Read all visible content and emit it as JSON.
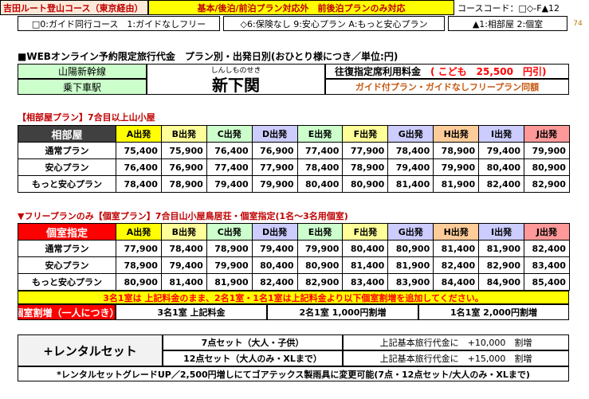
{
  "header": {
    "route": "吉田ルート登山コース（東京経由）",
    "plan_note": "基本/後泊/前泊プラン対応外　前後泊プランのみ対応",
    "course_code": "コースコード：□◇-F▲12",
    "legend_guide": "□0:ガイド同行コース　1:ガイドなしフリー",
    "legend_insurance": "◇6:保険なし 9:安心プラン A:もっと安心プラン",
    "legend_room": "▲1:相部屋 2:個室",
    "page_num": "74"
  },
  "title": "■WEBオンライン予約限定旅行代金　プラン別・出発日別(おひとり様につき／単位:円)",
  "station": {
    "line": "山陽新幹線",
    "board_label": "乗下車駅",
    "furigana": "しんしものせき",
    "name": "新下関",
    "fare_label": "往復指定席利用料金",
    "child_fare": "( こども　25,500　円引)",
    "guide_note": "ガイド付プラン・ガイドなしフリープラン同額"
  },
  "section1": {
    "title": "【相部屋プラン】7合目以上山小屋",
    "header": "相部屋",
    "departures": [
      "A出発",
      "B出発",
      "C出発",
      "D出発",
      "E出発",
      "F出発",
      "G出発",
      "H出発",
      "I出発",
      "J出発"
    ],
    "rows": [
      {
        "plan": "通常プラン",
        "prices": [
          "75,400",
          "75,900",
          "76,400",
          "76,900",
          "77,400",
          "77,900",
          "78,400",
          "78,900",
          "79,400",
          "79,900"
        ]
      },
      {
        "plan": "安心プラン",
        "prices": [
          "76,400",
          "76,900",
          "77,400",
          "77,900",
          "78,400",
          "78,900",
          "79,400",
          "79,900",
          "80,400",
          "80,900"
        ]
      },
      {
        "plan": "もっと安心プラン",
        "prices": [
          "78,400",
          "78,900",
          "79,400",
          "79,900",
          "80,400",
          "80,900",
          "81,400",
          "81,900",
          "82,400",
          "82,900"
        ]
      }
    ]
  },
  "section2": {
    "title": "▼フリープランのみ【個室プラン】7合目山小屋鳥居荘・個室指定(1名～3名用個室)",
    "header": "個室指定",
    "departures": [
      "A出発",
      "B出発",
      "C出発",
      "D出発",
      "E出発",
      "F出発",
      "G出発",
      "H出発",
      "I出発",
      "J出発"
    ],
    "rows": [
      {
        "plan": "通常プラン",
        "prices": [
          "77,900",
          "78,400",
          "78,900",
          "79,400",
          "79,900",
          "80,400",
          "80,900",
          "81,400",
          "81,900",
          "82,400"
        ]
      },
      {
        "plan": "安心プラン",
        "prices": [
          "78,900",
          "79,400",
          "79,900",
          "80,400",
          "80,900",
          "81,400",
          "81,900",
          "82,400",
          "82,900",
          "83,400"
        ]
      },
      {
        "plan": "もっと安心プラン",
        "prices": [
          "80,900",
          "81,400",
          "81,900",
          "82,400",
          "82,900",
          "83,400",
          "83,900",
          "84,400",
          "84,900",
          "85,400"
        ]
      }
    ],
    "notice": "3名1室は 上記料金のまま、2名1室・1名1室は上記料金より以下個室割増を追加してください。",
    "surcharge_label": "個室割増（一人につき）",
    "surcharge_3": "3名1室 上記料金",
    "surcharge_2": "2名1室 1,000円割増",
    "surcharge_1": "1名1室 2,000円割増"
  },
  "rental": {
    "title": "+レンタルセット",
    "set7": "7点セット（大人・子供）",
    "set7_desc": "上記基本旅行代金に　+10,000　割増",
    "set12": "12点セット（大人のみ・XLまで）",
    "set12_desc": "上記基本旅行代金に　+15,000　割増",
    "footnote": "*レンタルセットグレードUP／2,500円増しにてゴアテックス製雨具に変更可能(7点・12点セット/大人のみ・XLまで)"
  }
}
